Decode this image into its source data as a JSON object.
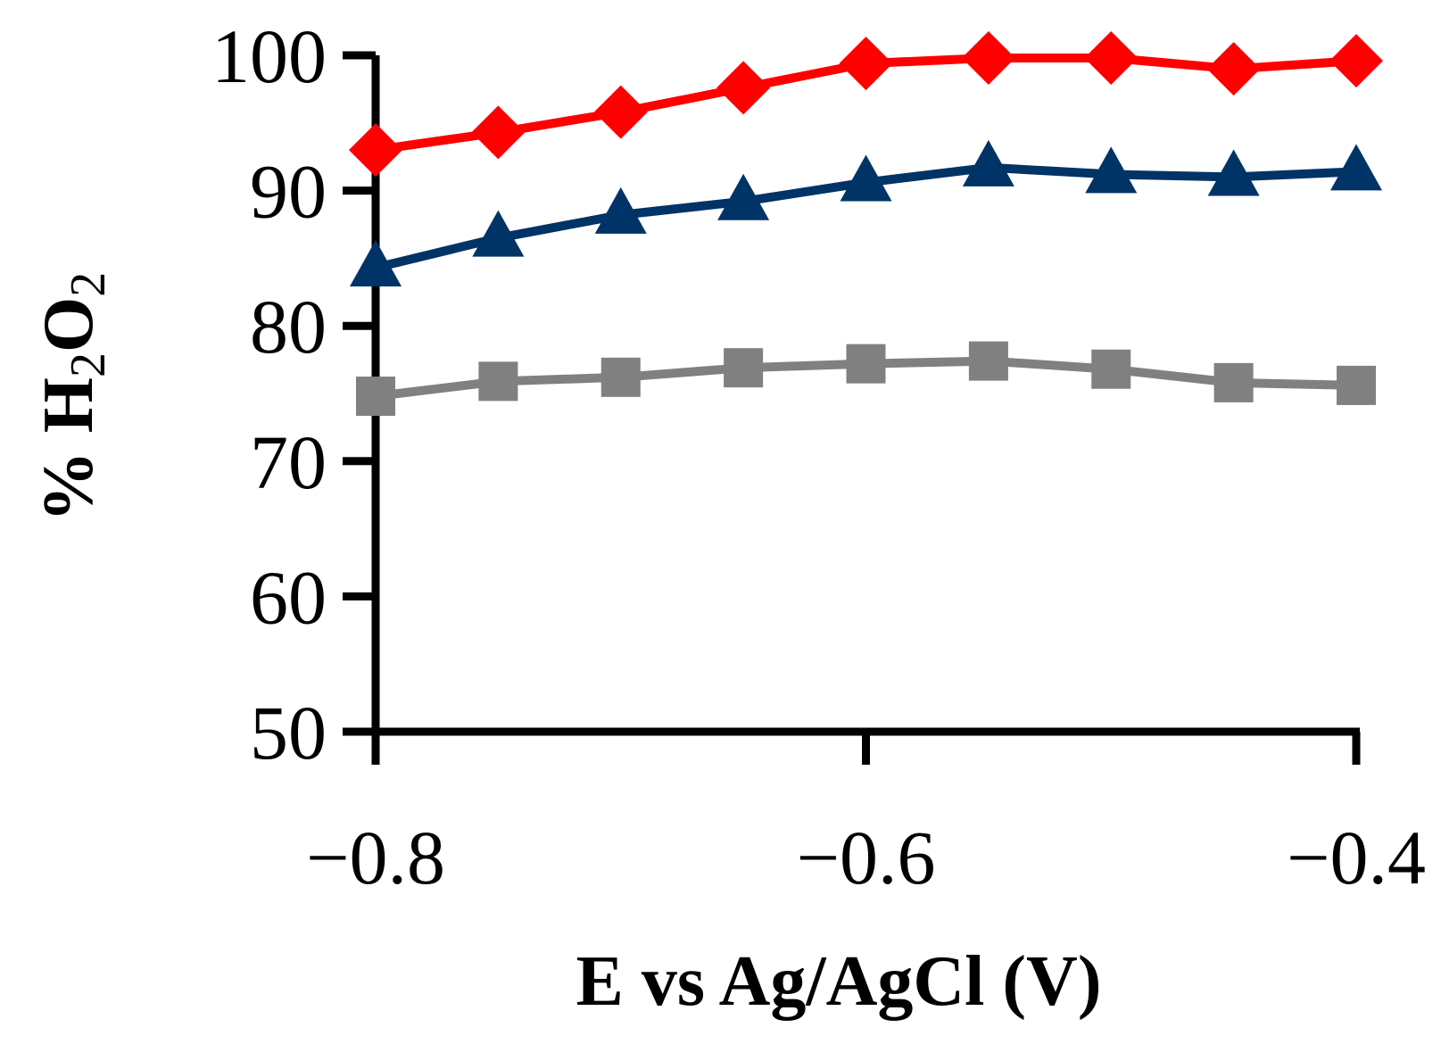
{
  "chart_data": {
    "type": "line",
    "title": "",
    "xlabel": "E vs Ag/AgCl (V)",
    "ylabel": {
      "prefix": "% H",
      "sub1": "2",
      "mid": "O",
      "sub2": "2"
    },
    "x": [
      -0.8,
      -0.75,
      -0.7,
      -0.65,
      -0.6,
      -0.55,
      -0.5,
      -0.45,
      -0.4
    ],
    "xlim": [
      -0.8,
      -0.4
    ],
    "ylim": [
      50,
      100
    ],
    "x_ticks": [
      -0.8,
      -0.6,
      -0.4
    ],
    "x_tick_labels": [
      "−0.8",
      "−0.6",
      "−0.4"
    ],
    "x_minor_ticks": [
      -0.8,
      -0.6,
      -0.4
    ],
    "y_ticks": [
      50,
      60,
      70,
      80,
      90,
      100
    ],
    "y_tick_labels": [
      "50",
      "60",
      "70",
      "80",
      "90",
      "100"
    ],
    "grid": false,
    "legend": "none",
    "series": [
      {
        "name": "red diamonds",
        "color": "#ff0000",
        "marker": "diamond",
        "values": [
          93,
          94.3,
          95.8,
          97.6,
          99.4,
          99.8,
          99.8,
          99,
          99.6
        ]
      },
      {
        "name": "navy triangles",
        "color": "#003366",
        "marker": "triangle",
        "values": [
          84.3,
          86.5,
          88.2,
          89.2,
          90.6,
          91.7,
          91.2,
          91,
          91.4
        ]
      },
      {
        "name": "grey squares",
        "color": "#808080",
        "marker": "square",
        "values": [
          74.8,
          75.9,
          76.2,
          76.9,
          77.2,
          77.4,
          76.8,
          75.8,
          75.6
        ]
      }
    ]
  }
}
